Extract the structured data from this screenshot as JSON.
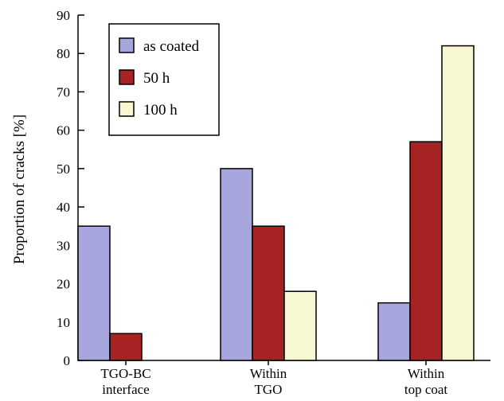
{
  "chart_data": {
    "type": "bar",
    "categories": [
      [
        "TGO-BC",
        "interface"
      ],
      [
        "Within",
        "TGO"
      ],
      [
        "Within",
        "top coat"
      ]
    ],
    "series": [
      {
        "name": "as coated",
        "color": "#a6a6dc",
        "values": [
          35,
          50,
          15
        ]
      },
      {
        "name": "50 h",
        "color": "#a52323",
        "values": [
          7,
          35,
          57
        ]
      },
      {
        "name": "100 h",
        "color": "#f7f7d2",
        "values": [
          0,
          18,
          82
        ]
      }
    ],
    "ylabel": "Proportion of cracks [%]",
    "xlabel": "",
    "ylim": [
      0,
      90
    ],
    "yticks": [
      0,
      10,
      20,
      30,
      40,
      50,
      60,
      70,
      80,
      90
    ],
    "grid": false,
    "legend": "top-left"
  }
}
